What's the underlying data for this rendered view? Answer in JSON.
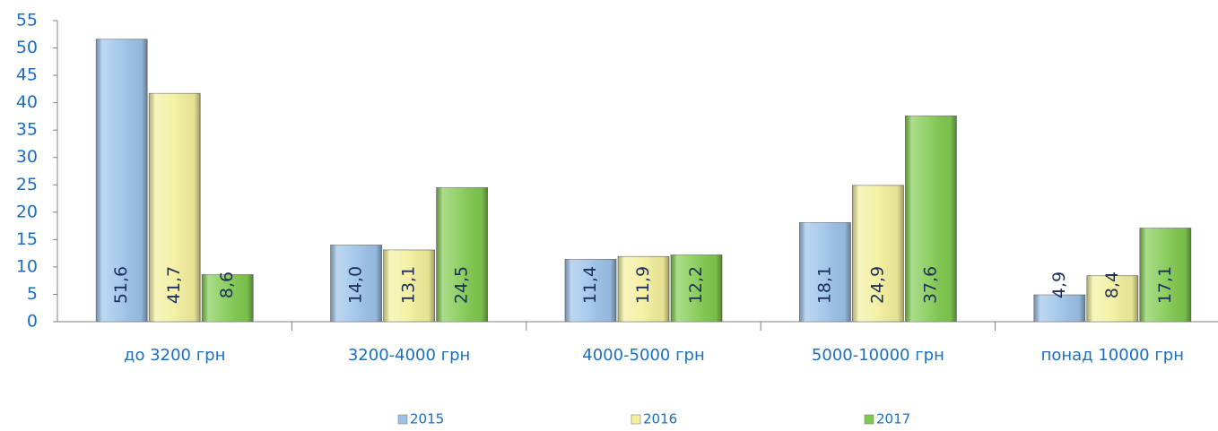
{
  "chart_data": {
    "type": "bar",
    "categories": [
      "до 3200 грн",
      "3200-4000 грн",
      "4000-5000 грн",
      "5000-10000 грн",
      "понад 10000 грн"
    ],
    "series": [
      {
        "name": "2015",
        "color": "#9cc2e8",
        "values": [
          51.6,
          14.0,
          11.4,
          18.1,
          4.9
        ],
        "value_labels": [
          "51,6",
          "14,0",
          "11,4",
          "18,1",
          "4,9"
        ]
      },
      {
        "name": "2016",
        "color": "#f3ef9c",
        "values": [
          41.7,
          13.1,
          11.9,
          24.9,
          8.4
        ],
        "value_labels": [
          "41,7",
          "13,1",
          "11,9",
          "24,9",
          "8,4"
        ]
      },
      {
        "name": "2017",
        "color": "#80c94f",
        "values": [
          8.6,
          24.5,
          12.2,
          37.6,
          17.1
        ],
        "value_labels": [
          "8,6",
          "24,5",
          "12,2",
          "37,6",
          "17,1"
        ]
      }
    ],
    "ylim": [
      0,
      55
    ],
    "yticks": [
      0,
      5,
      10,
      15,
      20,
      25,
      30,
      35,
      40,
      45,
      50,
      55
    ],
    "legend": "bottom"
  }
}
